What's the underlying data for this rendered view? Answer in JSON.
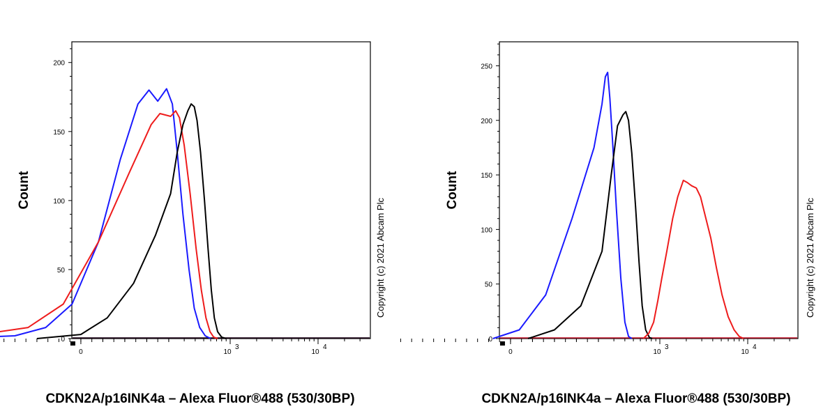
{
  "colors": {
    "blue": "#1a1aff",
    "red": "#ee1c1c",
    "black": "#000000"
  },
  "chart_data": [
    {
      "type": "line",
      "title": "",
      "xlabel": "CDKN2A/p16INK4a – Alexa Fluor®488 (530/30BP)",
      "ylabel": "Count",
      "copyright": "Copyright (c) 2021 Abcam Plc",
      "ylim": [
        0,
        215
      ],
      "yticks": [
        0,
        50,
        100,
        150,
        200
      ],
      "xscale": "biexponential",
      "xticks": [
        {
          "value": 0,
          "label": "0",
          "sup": ""
        },
        {
          "value": 1000,
          "label": "10",
          "sup": "3"
        },
        {
          "value": 10000,
          "label": "10",
          "sup": "4"
        }
      ],
      "series": [
        {
          "name": "blue",
          "color": "#1a1aff",
          "points": [
            [
              -300,
              0
            ],
            [
              -150,
              2
            ],
            [
              -80,
              8
            ],
            [
              -20,
              25
            ],
            [
              40,
              70
            ],
            [
              90,
              130
            ],
            [
              130,
              170
            ],
            [
              155,
              180
            ],
            [
              175,
              172
            ],
            [
              195,
              181
            ],
            [
              220,
              170
            ],
            [
              250,
              135
            ],
            [
              290,
              90
            ],
            [
              340,
              50
            ],
            [
              390,
              22
            ],
            [
              450,
              8
            ],
            [
              520,
              2
            ],
            [
              600,
              0
            ]
          ]
        },
        {
          "name": "red",
          "color": "#ee1c1c",
          "points": [
            [
              -400,
              0
            ],
            [
              -250,
              2
            ],
            [
              -120,
              8
            ],
            [
              -40,
              25
            ],
            [
              40,
              70
            ],
            [
              110,
              120
            ],
            [
              160,
              155
            ],
            [
              180,
              163
            ],
            [
              210,
              161
            ],
            [
              240,
              165
            ],
            [
              265,
              160
            ],
            [
              300,
              140
            ],
            [
              350,
              105
            ],
            [
              410,
              65
            ],
            [
              470,
              35
            ],
            [
              530,
              15
            ],
            [
              590,
              5
            ],
            [
              650,
              1
            ],
            [
              720,
              0
            ]
          ]
        },
        {
          "name": "black",
          "color": "#000000",
          "points": [
            [
              -100,
              0
            ],
            [
              0,
              3
            ],
            [
              60,
              15
            ],
            [
              120,
              40
            ],
            [
              170,
              75
            ],
            [
              210,
              105
            ],
            [
              250,
              135
            ],
            [
              290,
              155
            ],
            [
              330,
              165
            ],
            [
              360,
              170
            ],
            [
              390,
              168
            ],
            [
              420,
              158
            ],
            [
              460,
              135
            ],
            [
              510,
              100
            ],
            [
              560,
              65
            ],
            [
              610,
              35
            ],
            [
              660,
              15
            ],
            [
              720,
              5
            ],
            [
              800,
              1
            ],
            [
              900,
              0
            ]
          ]
        }
      ]
    },
    {
      "type": "line",
      "title": "",
      "xlabel": "CDKN2A/p16INK4a – Alexa Fluor®488 (530/30BP)",
      "ylabel": "Count",
      "copyright": "Copyright (c) 2021 Abcam Plc",
      "ylim": [
        0,
        272
      ],
      "yticks": [
        0,
        50,
        100,
        150,
        200,
        250
      ],
      "xscale": "biexponential",
      "xticks": [
        {
          "value": 0,
          "label": "0",
          "sup": ""
        },
        {
          "value": 1000,
          "label": "10",
          "sup": "3"
        },
        {
          "value": 10000,
          "label": "10",
          "sup": "4"
        }
      ],
      "series": [
        {
          "name": "blue",
          "color": "#1a1aff",
          "points": [
            [
              -40,
              0
            ],
            [
              20,
              8
            ],
            [
              80,
              40
            ],
            [
              140,
              110
            ],
            [
              190,
              175
            ],
            [
              220,
              215
            ],
            [
              240,
              240
            ],
            [
              255,
              244
            ],
            [
              270,
              220
            ],
            [
              290,
              180
            ],
            [
              320,
              120
            ],
            [
              360,
              55
            ],
            [
              400,
              15
            ],
            [
              440,
              2
            ],
            [
              480,
              0
            ]
          ]
        },
        {
          "name": "black",
          "color": "#000000",
          "points": [
            [
              40,
              0
            ],
            [
              100,
              8
            ],
            [
              160,
              30
            ],
            [
              220,
              80
            ],
            [
              280,
              150
            ],
            [
              330,
              195
            ],
            [
              380,
              205
            ],
            [
              410,
              208
            ],
            [
              440,
              200
            ],
            [
              480,
              170
            ],
            [
              530,
              120
            ],
            [
              580,
              70
            ],
            [
              630,
              30
            ],
            [
              690,
              8
            ],
            [
              760,
              1
            ],
            [
              820,
              0
            ]
          ]
        },
        {
          "name": "red",
          "color": "#ee1c1c",
          "points": [
            [
              650,
              0
            ],
            [
              750,
              5
            ],
            [
              850,
              15
            ],
            [
              950,
              35
            ],
            [
              1050,
              55
            ],
            [
              1200,
              80
            ],
            [
              1400,
              110
            ],
            [
              1600,
              130
            ],
            [
              1850,
              145
            ],
            [
              2050,
              143
            ],
            [
              2300,
              140
            ],
            [
              2600,
              138
            ],
            [
              2900,
              130
            ],
            [
              3300,
              112
            ],
            [
              3800,
              92
            ],
            [
              4400,
              65
            ],
            [
              5100,
              40
            ],
            [
              6000,
              20
            ],
            [
              7000,
              8
            ],
            [
              8000,
              2
            ],
            [
              9000,
              0
            ]
          ]
        }
      ]
    }
  ]
}
